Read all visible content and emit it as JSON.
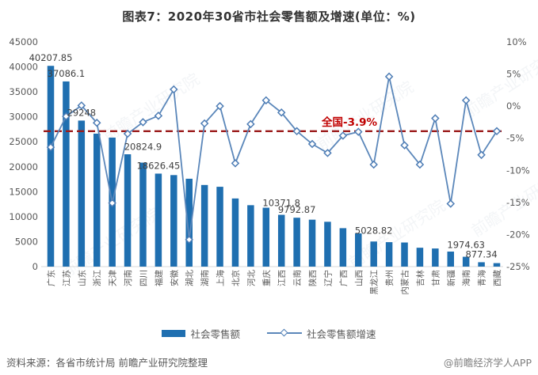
{
  "title": "图表7：2020年30省市社会零售额及增速(单位：%)",
  "chart_data": {
    "type": "bar+line",
    "title": "图表7：2020年30省市社会零售额及增速(单位：%)",
    "categories": [
      "广东",
      "江苏",
      "山东",
      "浙江",
      "天津",
      "河南",
      "四川",
      "福建",
      "安徽",
      "湖北",
      "湖南",
      "上海",
      "北京",
      "河北",
      "重庆",
      "江西",
      "云南",
      "陕西",
      "辽宁",
      "广西",
      "山西",
      "黑龙江",
      "贵州",
      "内蒙古",
      "吉林",
      "甘肃",
      "新疆",
      "海南",
      "青海",
      "西藏"
    ],
    "series": [
      {
        "name": "社会零售额",
        "type": "bar",
        "yaxis": "left",
        "values": [
          40207.85,
          37086.1,
          29248,
          26630,
          25840,
          22500,
          20824.9,
          18626.45,
          18330,
          17600,
          16350,
          15990,
          13650,
          12300,
          11800,
          10371.8,
          9792.87,
          9400,
          8980,
          7700,
          6650,
          5028.82,
          4900,
          4830,
          3780,
          3630,
          3010,
          1974.63,
          877.34,
          700
        ]
      },
      {
        "name": "社会零售额增速",
        "type": "line",
        "yaxis": "right",
        "unit": "%",
        "values": [
          -6.4,
          -1.6,
          0.1,
          -2.6,
          -15.1,
          -4.3,
          -2.5,
          -1.5,
          2.6,
          -20.8,
          -2.7,
          0.0,
          -8.9,
          -2.8,
          0.9,
          -1.0,
          -3.9,
          -5.9,
          -7.3,
          -4.6,
          -4.0,
          -9.1,
          4.6,
          -6.1,
          -9.1,
          -1.9,
          -15.2,
          0.9,
          -7.6,
          -3.9
        ]
      }
    ],
    "point_labels": {
      "0": "40207.85",
      "1": "37086.1",
      "2": "29248",
      "6": "20824.9",
      "7": "18626.45",
      "15": "10371.8",
      "16": "9792.87",
      "21": "5028.82",
      "27": "1974.63",
      "28": "877.34"
    },
    "label_dy": {
      "6": -10,
      "15": -5,
      "21": -4,
      "27": -5
    },
    "left_axis": {
      "min": 0,
      "max": 45000,
      "step": 5000
    },
    "right_axis": {
      "min": -25,
      "max": 10,
      "step": 5,
      "format": "percent"
    },
    "reference_line": {
      "value": -3.9,
      "label": "全国-3.9%"
    },
    "grid": false,
    "legend_position": "bottom",
    "colors": {
      "bar": "#1F6FB0",
      "line": "#5B87BA",
      "marker_stroke": "#4E7DB5",
      "marker_fill": "#FFFFFF",
      "reference": "#9B1B1B",
      "annotation": "#C00000",
      "axis_text": "#595959",
      "label_text": "#404040",
      "axis_line": "#D9D9D9"
    }
  },
  "legend": {
    "bar_label": "社会零售额",
    "line_label": "社会零售额增速"
  },
  "footer": {
    "source": "资料来源：各省市统计局 前瞻产业研究院整理",
    "credit": "@前瞻经济学人APP"
  },
  "watermark_text": "前瞻产业研究院"
}
